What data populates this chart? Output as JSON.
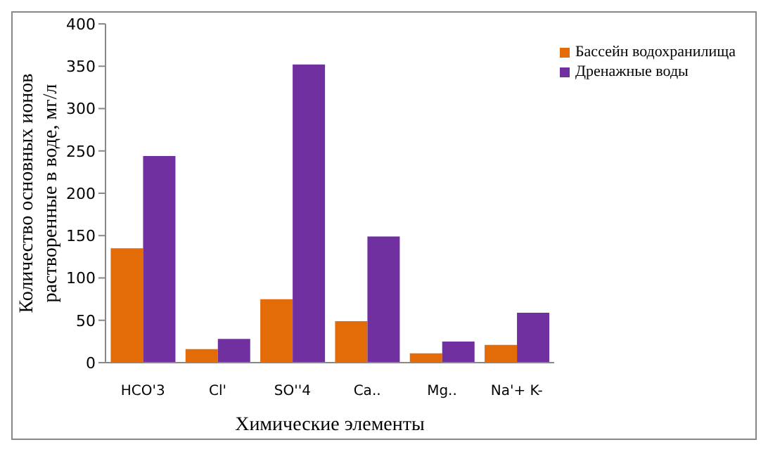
{
  "chart_data": {
    "type": "bar",
    "xlabel": "Химические элементы",
    "ylabel": "Количество основных ионов растворенные в воде, мг/л",
    "categories": [
      "HCO'3",
      "Cl'",
      "SO''4",
      "Ca..",
      "Mg..",
      "Na'+ K-"
    ],
    "series": [
      {
        "name": "Бассейн водохранилища",
        "color": "#e36c09",
        "values": [
          135,
          16,
          75,
          49,
          11,
          21
        ]
      },
      {
        "name": "Дренажные воды",
        "color": "#7030a0",
        "values": [
          244,
          28,
          352,
          149,
          25,
          59
        ]
      }
    ],
    "ylim": [
      0,
      400
    ],
    "yticks": [
      0,
      50,
      100,
      150,
      200,
      250,
      300,
      350,
      400
    ],
    "grid": false,
    "legend": "top right"
  }
}
